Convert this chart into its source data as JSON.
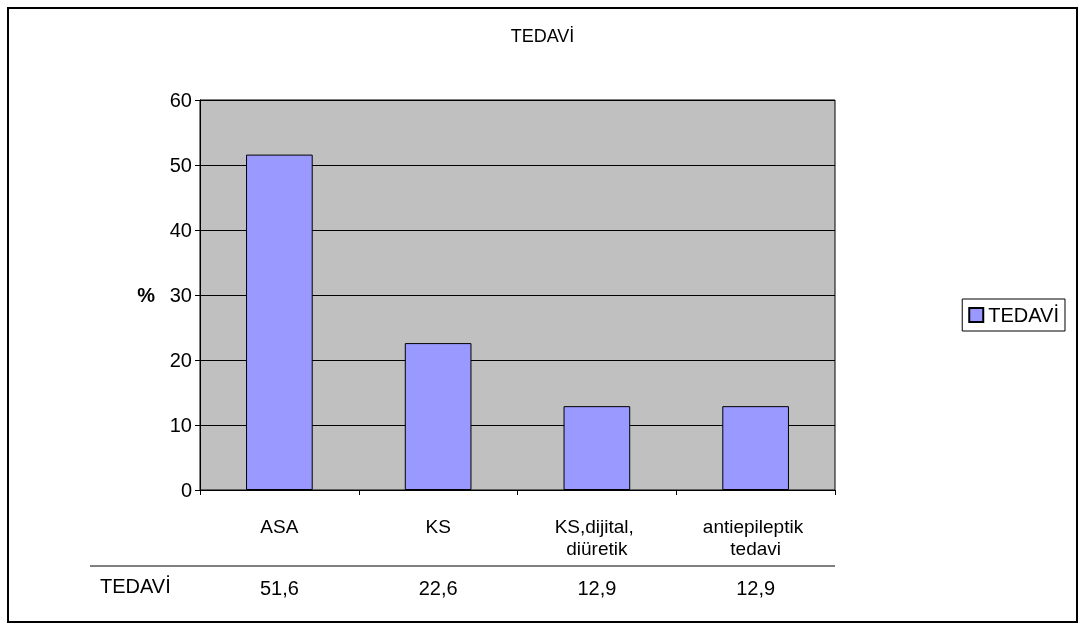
{
  "chart_data": {
    "type": "bar",
    "title": "TEDAVİ",
    "ylabel": "%",
    "categories": [
      "ASA",
      "KS",
      "KS,dijital, diüretik",
      "antiepileptik tedavi"
    ],
    "series": [
      {
        "name": "TEDAVİ",
        "color": "#9999ff",
        "values": [
          51.6,
          22.6,
          12.9,
          12.9
        ],
        "value_labels": [
          "51,6",
          "22,6",
          "12,9",
          "12,9"
        ]
      }
    ],
    "ylim": [
      0,
      60
    ],
    "yticks": [
      0,
      10,
      20,
      30,
      40,
      50,
      60
    ],
    "grid": "y",
    "legend": "right"
  }
}
